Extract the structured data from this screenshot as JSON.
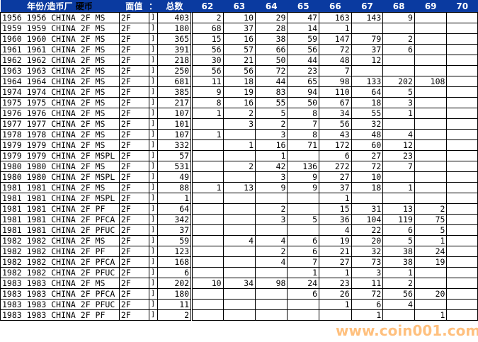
{
  "header": {
    "name": "年份/造币厂",
    "coin": "硬币",
    "denom": "面值",
    "sep": "：",
    "total": "总数",
    "grades": [
      "62",
      "63",
      "64",
      "65",
      "66",
      "67",
      "68",
      "69",
      "70"
    ]
  },
  "rows": [
    [
      "1956 1956 CHINA 2F MS",
      "2F",
      "403",
      "2",
      "10",
      "29",
      "47",
      "163",
      "143",
      "9",
      "",
      ""
    ],
    [
      "1959 1959 CHINA 2F MS",
      "2F",
      "180",
      "68",
      "37",
      "28",
      "14",
      "1",
      "",
      "",
      "",
      ""
    ],
    [
      "1960 1960 CHINA 2F MS",
      "2F",
      "365",
      "15",
      "16",
      "38",
      "59",
      "147",
      "79",
      "2",
      "",
      ""
    ],
    [
      "1961 1961 CHINA 2F MS",
      "2F",
      "391",
      "56",
      "57",
      "66",
      "56",
      "72",
      "37",
      "6",
      "",
      ""
    ],
    [
      "1962 1962 CHINA 2F MS",
      "2F",
      "218",
      "30",
      "21",
      "50",
      "44",
      "48",
      "12",
      "",
      "",
      ""
    ],
    [
      "1963 1963 CHINA 2F MS",
      "2F",
      "250",
      "56",
      "56",
      "72",
      "23",
      "7",
      "",
      "",
      "",
      ""
    ],
    [
      "1964 1964 CHINA 2F MS",
      "2F",
      "681",
      "11",
      "18",
      "44",
      "65",
      "98",
      "133",
      "202",
      "108",
      ""
    ],
    [
      "1974 1974 CHINA 2F MS",
      "2F",
      "385",
      "9",
      "19",
      "83",
      "94",
      "110",
      "64",
      "5",
      "",
      ""
    ],
    [
      "1975 1975 CHINA 2F MS",
      "2F",
      "217",
      "8",
      "16",
      "55",
      "50",
      "67",
      "18",
      "3",
      "",
      ""
    ],
    [
      "1976 1976 CHINA 2F MS",
      "2F",
      "107",
      "1",
      "2",
      "5",
      "8",
      "34",
      "55",
      "1",
      "",
      ""
    ],
    [
      "1977 1977 CHINA 2F MS",
      "2F",
      "101",
      "",
      "3",
      "2",
      "7",
      "56",
      "32",
      "",
      "",
      ""
    ],
    [
      "1978 1978 CHINA 2F MS",
      "2F",
      "107",
      "1",
      "",
      "3",
      "8",
      "43",
      "48",
      "4",
      "",
      ""
    ],
    [
      "1979 1979 CHINA 2F MS",
      "2F",
      "332",
      "",
      "1",
      "16",
      "71",
      "172",
      "60",
      "12",
      "",
      ""
    ],
    [
      "1979 1979 CHINA 2F MSPL",
      "2F",
      "57",
      "",
      "",
      "1",
      "",
      "6",
      "27",
      "23",
      "",
      ""
    ],
    [
      "1980 1980 CHINA 2F MS",
      "2F",
      "531",
      "",
      "2",
      "42",
      "136",
      "272",
      "72",
      "7",
      "",
      ""
    ],
    [
      "1980 1980 CHINA 2F MSPL",
      "2F",
      "49",
      "",
      "",
      "3",
      "9",
      "27",
      "10",
      "",
      "",
      ""
    ],
    [
      "1981 1981 CHINA 2F MS",
      "2F",
      "88",
      "1",
      "13",
      "9",
      "9",
      "37",
      "18",
      "1",
      "",
      ""
    ],
    [
      "1981 1981 CHINA 2F MSPL",
      "2F",
      "1",
      "",
      "",
      "",
      "",
      "1",
      "",
      "",
      "",
      ""
    ],
    [
      "1981 1981 CHINA 2F PF",
      "2F",
      "64",
      "",
      "",
      "2",
      "",
      "15",
      "31",
      "13",
      "2",
      ""
    ],
    [
      "1981 1981 CHINA 2F PFCA",
      "2F",
      "342",
      "",
      "",
      "3",
      "5",
      "36",
      "104",
      "119",
      "75",
      ""
    ],
    [
      "1981 1981 CHINA 2F PFUC",
      "2F",
      "37",
      "",
      "",
      "",
      "",
      "4",
      "22",
      "6",
      "5",
      ""
    ],
    [
      "1982 1982 CHINA 2F MS",
      "2F",
      "59",
      "",
      "4",
      "4",
      "6",
      "19",
      "20",
      "5",
      "1",
      ""
    ],
    [
      "1982 1982 CHINA 2F PF",
      "2F",
      "123",
      "",
      "",
      "2",
      "6",
      "21",
      "32",
      "38",
      "24",
      ""
    ],
    [
      "1982 1982 CHINA 2F PFCA",
      "2F",
      "168",
      "",
      "",
      "4",
      "7",
      "27",
      "73",
      "38",
      "19",
      ""
    ],
    [
      "1982 1982 CHINA 2F PFUC",
      "2F",
      "6",
      "",
      "",
      "",
      "1",
      "1",
      "3",
      "1",
      "",
      ""
    ],
    [
      "1983 1983 CHINA 2F MS",
      "2F",
      "202",
      "10",
      "34",
      "98",
      "24",
      "23",
      "11",
      "2",
      "",
      ""
    ],
    [
      "1983 1983 CHINA 2F PFCA",
      "2F",
      "180",
      "",
      "",
      "",
      "6",
      "26",
      "72",
      "56",
      "20",
      ""
    ],
    [
      "1983 1983 CHINA 2F PFUC",
      "2F",
      "11",
      "",
      "",
      "",
      "",
      "1",
      "6",
      "4",
      "",
      ""
    ],
    [
      "1983 1983 CHINA 2F PF",
      "2F",
      "2",
      "",
      "",
      "",
      "",
      "",
      "1",
      "",
      "1",
      ""
    ]
  ],
  "hidden_col_glyph": "]",
  "watermark": "www.coin001.com",
  "colors": {
    "header_bg": "#0a3aa0",
    "header_text": "#ffffff",
    "watermark": "#ff9628"
  }
}
